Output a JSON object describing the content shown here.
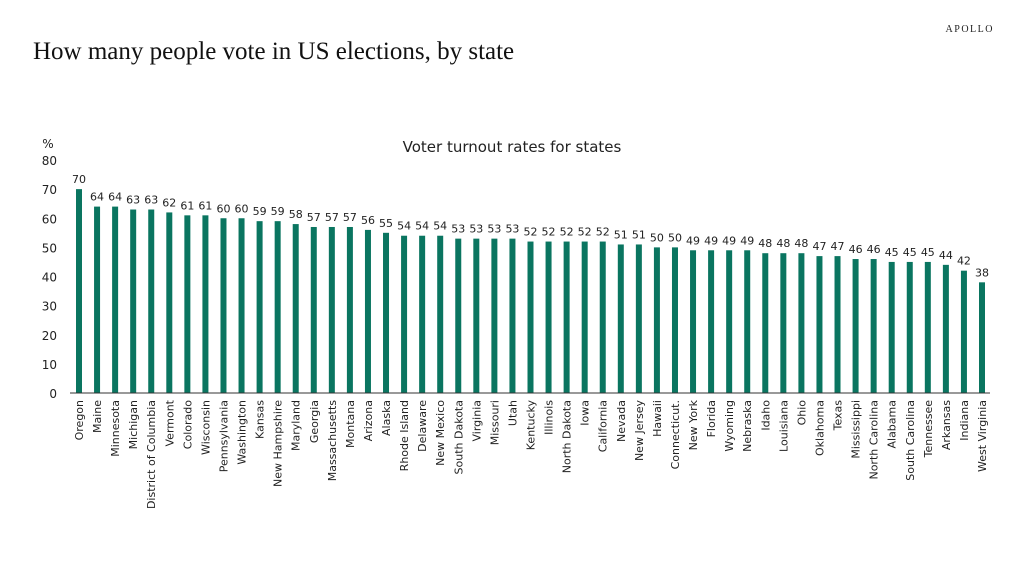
{
  "header": {
    "title": "How many people vote in US elections, by state",
    "logo": "APOLLO"
  },
  "chart_data": {
    "type": "bar",
    "title": "Voter turnout rates for states",
    "ylabel": "%",
    "ylim": [
      0,
      80
    ],
    "yticks": [
      0,
      10,
      20,
      30,
      40,
      50,
      60,
      70,
      80
    ],
    "grid": false,
    "bar_color": "#0a7560",
    "categories": [
      "Oregon",
      "Maine",
      "Minnesota",
      "Michigan",
      "District of Columbia",
      "Vermont",
      "Colorado",
      "Wisconsin",
      "Pennsylvania",
      "Washington",
      "Kansas",
      "New Hampshire",
      "Maryland",
      "Georgia",
      "Massachusetts",
      "Montana",
      "Arizona",
      "Alaska",
      "Rhode Island",
      "Delaware",
      "New Mexico",
      "South Dakota",
      "Virginia",
      "Missouri",
      "Utah",
      "Kentucky",
      "Illinois",
      "North Dakota",
      "Iowa",
      "California",
      "Nevada",
      "New Jersey",
      "Hawaii",
      "Connecticut.",
      "New York",
      "Florida",
      "Wyoming",
      "Nebraska",
      "Idaho",
      "Louisiana",
      "Ohio",
      "Oklahoma",
      "Texas",
      "Mississippi",
      "North Carolina",
      "Alabama",
      "South Carolina",
      "Tennessee",
      "Arkansas",
      "Indiana",
      "West Virginia"
    ],
    "values": [
      70,
      64,
      64,
      63,
      63,
      62,
      61,
      61,
      60,
      60,
      59,
      59,
      58,
      57,
      57,
      57,
      56,
      55,
      54,
      54,
      54,
      53,
      53,
      53,
      53,
      52,
      52,
      52,
      52,
      52,
      51,
      51,
      50,
      50,
      49,
      49,
      49,
      49,
      48,
      48,
      48,
      47,
      47,
      46,
      46,
      45,
      45,
      45,
      44,
      42,
      38
    ]
  }
}
